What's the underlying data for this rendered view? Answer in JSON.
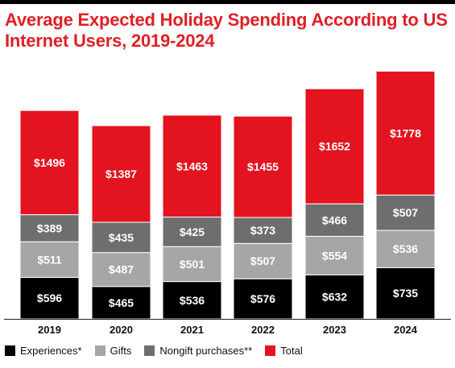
{
  "title": "Average Expected Holiday Spending According to US Internet Users, 2019-2024",
  "colors": {
    "experiences": "#000000",
    "gifts": "#a6a6a6",
    "nongift": "#6e6e6e",
    "total": "#e3141f"
  },
  "chart_data": {
    "type": "bar",
    "stacked": true,
    "categories": [
      "2019",
      "2020",
      "2021",
      "2022",
      "2023",
      "2024"
    ],
    "series": [
      {
        "name": "Experiences*",
        "key": "experiences",
        "values": [
          596,
          465,
          536,
          576,
          632,
          735
        ],
        "labels": [
          "$596",
          "$465",
          "$536",
          "$576",
          "$632",
          "$735"
        ]
      },
      {
        "name": "Gifts",
        "key": "gifts",
        "values": [
          511,
          487,
          501,
          507,
          554,
          536
        ],
        "labels": [
          "$511",
          "$487",
          "$501",
          "$507",
          "$554",
          "$536"
        ]
      },
      {
        "name": "Nongift purchases**",
        "key": "nongift",
        "values": [
          389,
          435,
          425,
          373,
          466,
          507
        ],
        "labels": [
          "$389",
          "$435",
          "$425",
          "$373",
          "$466",
          "$507"
        ]
      },
      {
        "name": "Total",
        "key": "total",
        "values": [
          1496,
          1387,
          1463,
          1455,
          1652,
          1778
        ],
        "labels": [
          "$1496",
          "$1387",
          "$1463",
          "$1455",
          "$1652",
          "$1778"
        ]
      }
    ],
    "grid": false,
    "legend_position": "bottom-left"
  }
}
